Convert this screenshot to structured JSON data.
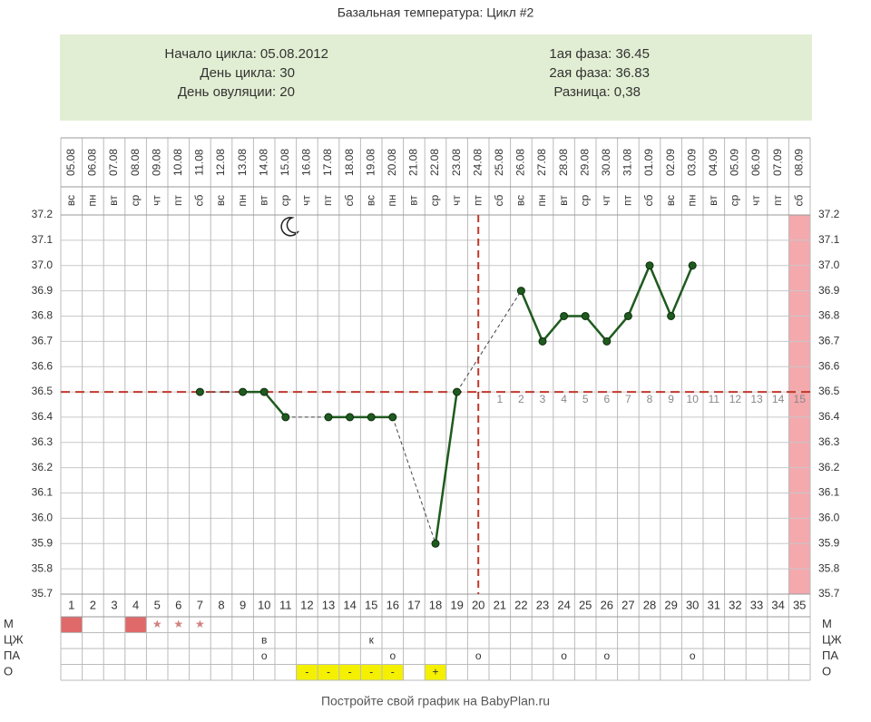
{
  "chart_data": {
    "type": "line",
    "title": "Базальная температура: Цикл #2",
    "summary": {
      "left": [
        "Начало цикла: 05.08.2012",
        "День цикла: 30",
        "День овуляции: 20"
      ],
      "right": [
        "1ая фаза: 36.45",
        "2ая фаза: 36.83",
        "Разница: 0,38"
      ]
    },
    "categories": [
      "1",
      "2",
      "3",
      "4",
      "5",
      "6",
      "7",
      "8",
      "9",
      "10",
      "11",
      "12",
      "13",
      "14",
      "15",
      "16",
      "17",
      "18",
      "19",
      "20",
      "21",
      "22",
      "23",
      "24",
      "25",
      "26",
      "27",
      "28",
      "29",
      "30",
      "31",
      "32",
      "33",
      "34",
      "35"
    ],
    "dates": [
      "05.08",
      "06.08",
      "07.08",
      "08.08",
      "09.08",
      "10.08",
      "11.08",
      "12.08",
      "13.08",
      "14.08",
      "15.08",
      "16.08",
      "17.08",
      "18.08",
      "19.08",
      "20.08",
      "21.08",
      "22.08",
      "23.08",
      "24.08",
      "25.08",
      "26.08",
      "27.08",
      "28.08",
      "29.08",
      "30.08",
      "31.08",
      "01.09",
      "02.09",
      "03.09",
      "04.09",
      "05.09",
      "06.09",
      "07.09",
      "08.09"
    ],
    "weekdays": [
      "вс",
      "пн",
      "вт",
      "ср",
      "чт",
      "пт",
      "сб",
      "вс",
      "пн",
      "вт",
      "ср",
      "чт",
      "пт",
      "сб",
      "вс",
      "пн",
      "вт",
      "ср",
      "чт",
      "пт",
      "сб",
      "вс",
      "пн",
      "вт",
      "ср",
      "чт",
      "пт",
      "сб",
      "вс",
      "пн",
      "вт",
      "ср",
      "чт",
      "пт",
      "сб"
    ],
    "values": [
      null,
      null,
      null,
      null,
      null,
      null,
      36.5,
      null,
      36.5,
      36.5,
      36.4,
      null,
      36.4,
      36.4,
      36.4,
      36.4,
      null,
      35.9,
      36.5,
      null,
      null,
      36.9,
      36.7,
      36.8,
      36.8,
      36.7,
      36.8,
      37.0,
      36.8,
      37.0,
      null,
      null,
      null,
      null,
      null
    ],
    "color": "#1f5a1f",
    "ylim": [
      35.7,
      37.2
    ],
    "yticks": [
      37.2,
      37.1,
      {
        "value": 37,
        "label": "37.0"
      },
      36.9,
      36.8,
      36.7,
      36.6,
      36.5,
      36.4,
      36.3,
      36.2,
      36.1,
      {
        "value": 36,
        "label": "36.0"
      },
      35.9,
      35.8,
      35.7
    ],
    "grid": true,
    "cover_line": 36.5,
    "ovulation_day": 20,
    "phase2_days": [
      "1",
      "2",
      "3",
      "4",
      "5",
      "6",
      "7",
      "8",
      "9",
      "10",
      "11",
      "12",
      "13",
      "14",
      "15"
    ],
    "highlight_day": 35,
    "table": [
      {
        "label": "М",
        "cells": [
          {
            "day": 1,
            "fill": "#e06a6a"
          },
          {
            "day": 4,
            "fill": "#e06a6a"
          },
          {
            "day": 5,
            "text": "★"
          },
          {
            "day": 6,
            "text": "★"
          },
          {
            "day": 7,
            "text": "★"
          }
        ]
      },
      {
        "label": "ЦЖ",
        "cells": [
          {
            "day": 10,
            "text": "в"
          },
          {
            "day": 15,
            "text": "к"
          }
        ]
      },
      {
        "label": "ПА",
        "cells": [
          {
            "day": 10,
            "text": "о"
          },
          {
            "day": 16,
            "text": "о"
          },
          {
            "day": 20,
            "text": "о"
          },
          {
            "day": 24,
            "text": "о"
          },
          {
            "day": 26,
            "text": "о"
          },
          {
            "day": 30,
            "text": "о"
          }
        ]
      },
      {
        "label": "О",
        "cells": [
          {
            "day": 12,
            "text": "-",
            "fill": "#f4f000"
          },
          {
            "day": 13,
            "text": "-",
            "fill": "#f4f000"
          },
          {
            "day": 14,
            "text": "-",
            "fill": "#f4f000"
          },
          {
            "day": 15,
            "text": "-",
            "fill": "#f4f000"
          },
          {
            "day": 16,
            "text": "-",
            "fill": "#f4f000"
          },
          {
            "day": 18,
            "text": "+",
            "fill": "#f4f000"
          }
        ]
      }
    ],
    "footer": "Постройте свой график на BabyPlan.ru"
  }
}
